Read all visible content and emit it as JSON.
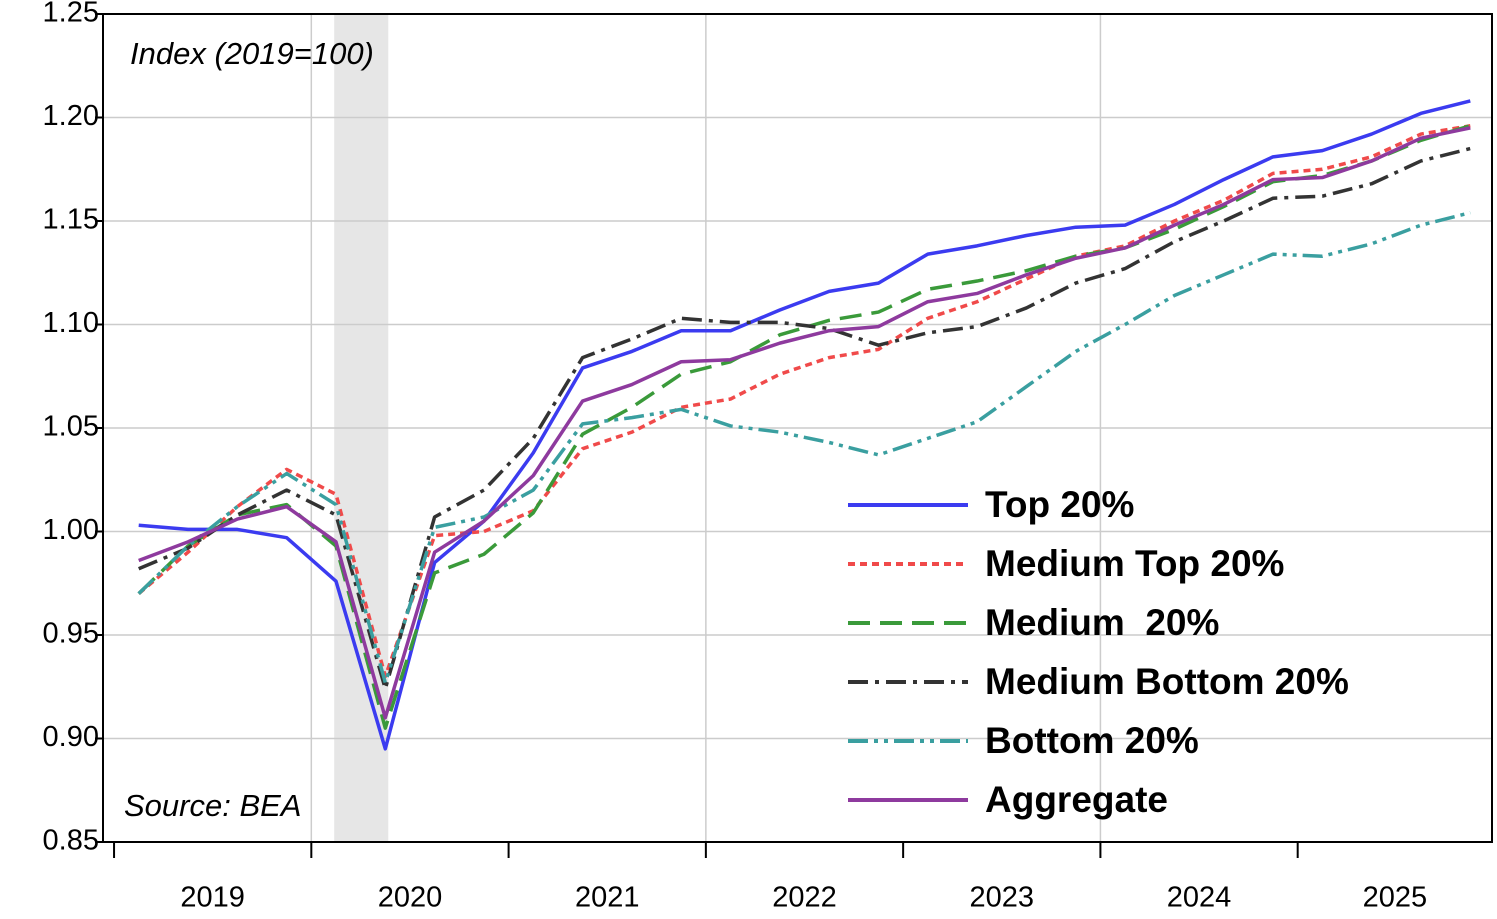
{
  "chart_data": {
    "type": "line",
    "annotations": [
      "Index (2019=100)",
      "Source: BEA"
    ],
    "x": [
      2019.125,
      2019.375,
      2019.625,
      2019.875,
      2020.125,
      2020.375,
      2020.625,
      2020.875,
      2021.125,
      2021.375,
      2021.625,
      2021.875,
      2022.125,
      2022.375,
      2022.625,
      2022.875,
      2023.125,
      2023.375,
      2023.625,
      2023.875,
      2024.125,
      2024.375,
      2024.625,
      2024.875,
      2025.125,
      2025.375,
      2025.625,
      2025.875
    ],
    "series": [
      {
        "name": "Top 20%",
        "color": "#3b3bf0",
        "dash": "none",
        "values": [
          1.003,
          1.001,
          1.001,
          0.997,
          0.976,
          0.895,
          0.985,
          1.005,
          1.038,
          1.079,
          1.087,
          1.097,
          1.097,
          1.107,
          1.116,
          1.12,
          1.134,
          1.138,
          1.143,
          1.147,
          1.148,
          1.158,
          1.17,
          1.181,
          1.184,
          1.192,
          1.202,
          1.208
        ]
      },
      {
        "name": "Medium Top 20%",
        "color": "#f04a4a",
        "dash": "7,5",
        "values": [
          0.97,
          0.99,
          1.012,
          1.03,
          1.018,
          0.93,
          0.998,
          1.0,
          1.01,
          1.04,
          1.048,
          1.06,
          1.064,
          1.076,
          1.084,
          1.088,
          1.103,
          1.111,
          1.122,
          1.133,
          1.138,
          1.15,
          1.16,
          1.173,
          1.175,
          1.181,
          1.192,
          1.196
        ]
      },
      {
        "name": "Medium  20%",
        "color": "#3a9a3a",
        "dash": "22,10",
        "values": [
          0.97,
          0.993,
          1.008,
          1.013,
          0.993,
          0.905,
          0.98,
          0.989,
          1.009,
          1.047,
          1.06,
          1.076,
          1.082,
          1.095,
          1.102,
          1.106,
          1.117,
          1.121,
          1.126,
          1.133,
          1.137,
          1.146,
          1.157,
          1.169,
          1.172,
          1.179,
          1.189,
          1.196
        ]
      },
      {
        "name": "Medium Bottom 20%",
        "color": "#333333",
        "dash": "20,7,4,7",
        "values": [
          0.982,
          0.992,
          1.008,
          1.02,
          1.008,
          0.924,
          1.007,
          1.02,
          1.045,
          1.084,
          1.093,
          1.103,
          1.101,
          1.101,
          1.098,
          1.09,
          1.096,
          1.099,
          1.108,
          1.12,
          1.127,
          1.14,
          1.15,
          1.161,
          1.162,
          1.168,
          1.179,
          1.185
        ]
      },
      {
        "name": "Bottom 20%",
        "color": "#3a9fa0",
        "dash": "20,6,4,6,4,6",
        "values": [
          0.97,
          0.993,
          1.012,
          1.028,
          1.013,
          0.927,
          1.002,
          1.007,
          1.02,
          1.052,
          1.055,
          1.059,
          1.051,
          1.048,
          1.043,
          1.037,
          1.045,
          1.053,
          1.07,
          1.087,
          1.1,
          1.114,
          1.124,
          1.134,
          1.133,
          1.139,
          1.148,
          1.154
        ]
      },
      {
        "name": "Aggregate",
        "color": "#8e3a9e",
        "dash": "none",
        "values": [
          0.986,
          0.995,
          1.006,
          1.012,
          0.995,
          0.91,
          0.99,
          1.005,
          1.027,
          1.063,
          1.071,
          1.082,
          1.083,
          1.091,
          1.097,
          1.099,
          1.111,
          1.115,
          1.124,
          1.132,
          1.137,
          1.148,
          1.158,
          1.17,
          1.171,
          1.179,
          1.19,
          1.195
        ]
      }
    ],
    "xlim": [
      2018.944,
      2025.985
    ],
    "xticks": [
      2019,
      2020,
      2021,
      2022,
      2023,
      2024,
      2025
    ],
    "xgrid": [
      2020,
      2022,
      2024
    ],
    "shade": [
      2020.116,
      2020.39
    ],
    "ylim": [
      0.85,
      1.25
    ],
    "yticks": [
      0.85,
      {
        "value": 0.9,
        "label": "0.90"
      },
      0.95,
      {
        "value": 1.0,
        "label": "1.00"
      },
      1.05,
      {
        "value": 1.1,
        "label": "1.10"
      },
      1.15,
      {
        "value": 1.2,
        "label": "1.20"
      },
      1.25
    ],
    "grid": true,
    "legend": "lower right"
  }
}
